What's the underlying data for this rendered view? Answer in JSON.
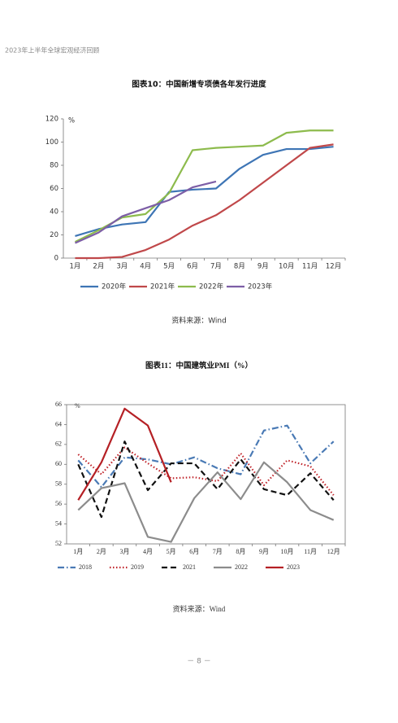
{
  "header": "2023年上半年全球宏观经济回顾",
  "chart_data": [
    {
      "type": "line",
      "title": "图表10：中国新增专项债各年发行进度",
      "y_unit": "%",
      "categories": [
        "1月",
        "2月",
        "3月",
        "4月",
        "5月",
        "6月",
        "7月",
        "8月",
        "9月",
        "10月",
        "11月",
        "12月"
      ],
      "ylim": [
        0,
        120
      ],
      "yticks": [
        0,
        20,
        40,
        60,
        80,
        100,
        120
      ],
      "series": [
        {
          "name": "2020年",
          "color": "#3e75b5",
          "dash": "solid",
          "values": [
            19,
            25,
            29,
            31,
            57,
            59,
            60,
            77,
            89,
            94,
            94,
            96
          ]
        },
        {
          "name": "2021年",
          "color": "#c0484a",
          "dash": "solid",
          "values": [
            0,
            0,
            1,
            7,
            16,
            28,
            37,
            50,
            65,
            80,
            95,
            98
          ]
        },
        {
          "name": "2022年",
          "color": "#8dbb4d",
          "dash": "solid",
          "values": [
            14,
            24,
            35,
            38,
            56,
            93,
            95,
            96,
            97,
            108,
            110,
            110
          ]
        },
        {
          "name": "2023年",
          "color": "#7d5ea6",
          "dash": "solid",
          "values": [
            13,
            22,
            36,
            43,
            50,
            61,
            66,
            null,
            null,
            null,
            null,
            null
          ]
        }
      ],
      "source": "资料来源：Wind"
    },
    {
      "type": "line",
      "title": "图表11：中国建筑业PMI（%）",
      "y_unit": "%",
      "categories": [
        "1月",
        "2月",
        "3月",
        "4月",
        "5月",
        "6月",
        "7月",
        "8月",
        "9月",
        "10月",
        "11月",
        "12月"
      ],
      "ylim": [
        52,
        66
      ],
      "yticks": [
        52,
        54,
        56,
        58,
        60,
        62,
        64,
        66
      ],
      "series": [
        {
          "name": "2018",
          "color": "#4a7ab5",
          "dash": "dashdot",
          "values": [
            60.4,
            57.7,
            60.7,
            60.5,
            60.0,
            60.7,
            59.6,
            59.0,
            63.4,
            63.9,
            60.1,
            62.3
          ]
        },
        {
          "name": "2019",
          "color": "#c0262c",
          "dash": "dot",
          "values": [
            61.0,
            59.0,
            61.7,
            60.1,
            58.6,
            58.7,
            58.3,
            61.1,
            57.9,
            60.4,
            59.8,
            56.9
          ]
        },
        {
          "name": "2021",
          "color": "#111111",
          "dash": "dash",
          "values": [
            60.0,
            54.7,
            62.3,
            57.4,
            60.1,
            60.1,
            57.5,
            60.5,
            57.5,
            56.9,
            59.1,
            56.4
          ]
        },
        {
          "name": "2022",
          "color": "#8c8c8c",
          "dash": "solid",
          "values": [
            55.4,
            57.6,
            58.1,
            52.7,
            52.2,
            56.6,
            59.2,
            56.5,
            60.2,
            58.2,
            55.4,
            54.4
          ]
        },
        {
          "name": "2023",
          "color": "#b52025",
          "dash": "solid",
          "values": [
            56.4,
            60.2,
            65.6,
            63.9,
            58.2,
            null,
            null,
            null,
            null,
            null,
            null,
            null
          ]
        }
      ],
      "source": "资料来源：Wind"
    }
  ],
  "footer": "－ 8 －"
}
